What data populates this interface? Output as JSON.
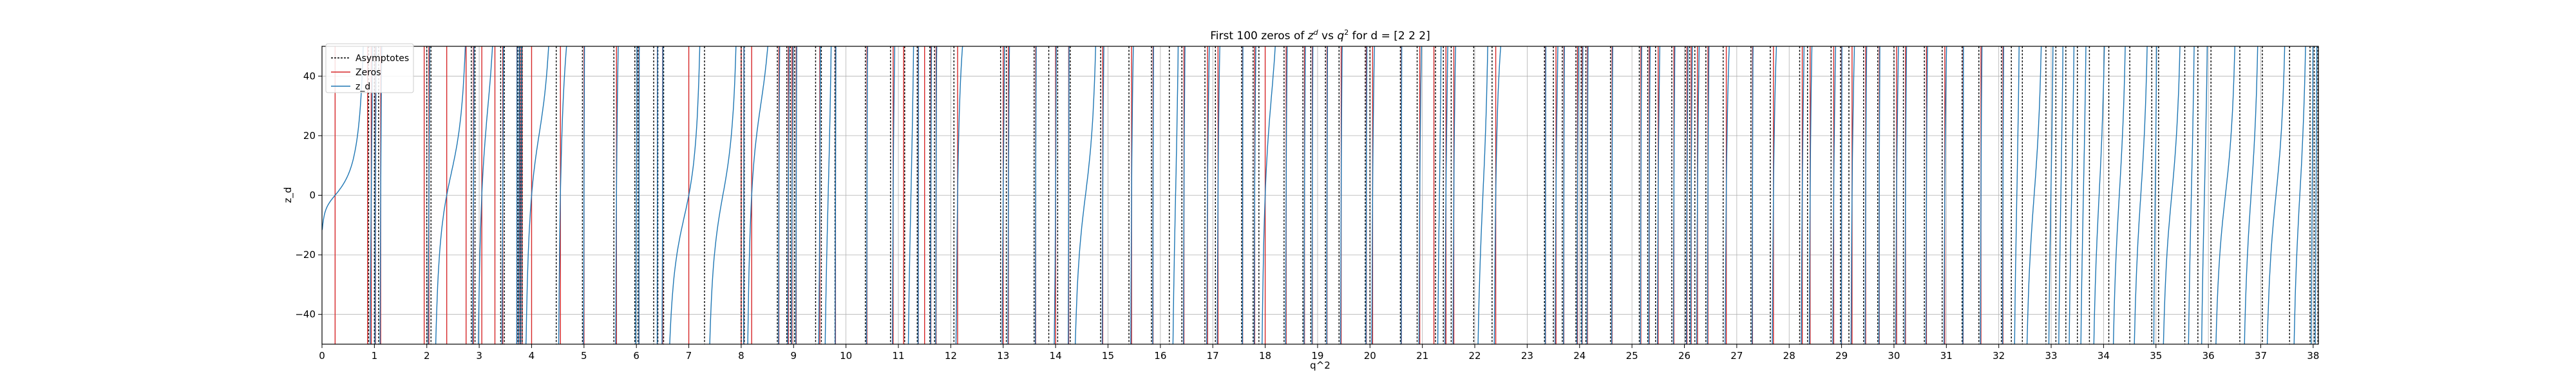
{
  "chart_data": {
    "type": "line",
    "title": "First 100 zeros of z^d vs q^2 for d = [2 2 2]",
    "title_parts": {
      "prefix": "First 100 zeros of ",
      "z": "z",
      "z_sup": "d",
      "vs": " vs ",
      "q": "q",
      "q_sup": "2",
      "suffix": " for d = [2 2 2]"
    },
    "xlabel": "q^2",
    "ylabel": "z_d",
    "xlim": [
      0,
      38.1
    ],
    "ylim": [
      -50,
      50
    ],
    "xticks": [
      "0",
      "1",
      "2",
      "3",
      "4",
      "5",
      "6",
      "7",
      "8",
      "9",
      "10",
      "11",
      "12",
      "13",
      "14",
      "15",
      "16",
      "17",
      "18",
      "19",
      "20",
      "21",
      "22",
      "23",
      "24",
      "25",
      "26",
      "27",
      "28",
      "29",
      "30",
      "31",
      "32",
      "33",
      "34",
      "35",
      "36",
      "37",
      "38"
    ],
    "yticks": [
      "−40",
      "−20",
      "0",
      "20",
      "40"
    ],
    "ytick_values": [
      -40,
      -20,
      0,
      20,
      40
    ],
    "grid": true,
    "legend": {
      "placement": "top-left",
      "entries": [
        {
          "label": "Asymptotes",
          "style": "dotted",
          "color": "#000000"
        },
        {
          "label": "Zeros",
          "style": "solid",
          "color": "#d62728"
        },
        {
          "label": "z_d",
          "style": "solid",
          "color": "#1f77b4"
        }
      ]
    },
    "colors": {
      "zeros": "#d62728",
      "asymptotes": "#000000",
      "curve": "#1f77b4"
    },
    "asymptotes": [
      0.89,
      1.0,
      1.08,
      2.0,
      2.08,
      2.85,
      2.92,
      3.41,
      3.48,
      3.74,
      3.78,
      3.82,
      4.47,
      4.97,
      5.57,
      5.97,
      6.03,
      6.33,
      6.41,
      6.52,
      7.3,
      8.0,
      8.06,
      8.69,
      8.87,
      8.94,
      9.02,
      9.42,
      9.53,
      9.79,
      10.37,
      10.85,
      11.12,
      11.36,
      11.6,
      11.69,
      12.06,
      12.95,
      13.06,
      13.59,
      13.87,
      14.04,
      14.28,
      14.86,
      15.4,
      15.83,
      16.17,
      16.41,
      16.85,
      17.05,
      17.55,
      17.77,
      17.88,
      18.36,
      18.72,
      18.87,
      19.15,
      19.41,
      19.91,
      20.0,
      20.58,
      20.9,
      21.25,
      21.4,
      21.55,
      21.98,
      22.33,
      23.33,
      23.5,
      23.67,
      23.93,
      24.03,
      24.12,
      24.59,
      25.14,
      25.3,
      25.45,
      25.76,
      26.02,
      26.1,
      26.2,
      26.41,
      26.74,
      27.27,
      27.64,
      28.2,
      28.35,
      28.8,
      28.98,
      29.14,
      29.42,
      29.69,
      30.0,
      30.18,
      30.58,
      30.92,
      31.3,
      31.62,
      32.05,
      32.24,
      32.45,
      32.9,
      33.09,
      33.28,
      33.5,
      33.73,
      34.1,
      34.5,
      34.92,
      35.05,
      35.55,
      35.8,
      36.05,
      36.6,
      37.03,
      37.55,
      37.94,
      38.02,
      38.09
    ],
    "zeros": [
      0.25,
      0.87,
      0.94,
      1.02,
      1.12,
      1.95,
      2.04,
      2.38,
      2.75,
      2.89,
      3.05,
      3.3,
      3.45,
      3.72,
      3.78,
      3.82,
      4.0,
      4.55,
      5.0,
      5.62,
      6.05,
      6.4,
      6.5,
      7.0,
      8.0,
      8.05,
      8.2,
      8.72,
      8.9,
      8.97,
      9.05,
      9.5,
      9.8,
      10.4,
      10.9,
      11.1,
      11.38,
      11.5,
      11.62,
      11.72,
      12.13,
      13.0,
      13.1,
      13.62,
      14.0,
      14.25,
      14.9,
      15.45,
      15.86,
      16.45,
      16.9,
      17.1,
      17.57,
      17.8,
      18.0,
      18.4,
      18.75,
      18.9,
      19.18,
      19.45,
      19.93,
      20.05,
      20.6,
      20.95,
      21.22,
      21.45,
      21.6,
      22.4,
      23.35,
      23.55,
      23.7,
      23.96,
      24.05,
      24.15,
      24.62,
      25.17,
      25.33,
      25.5,
      25.8,
      26.05,
      26.13,
      26.25,
      26.45,
      26.8,
      27.3,
      27.7,
      28.25,
      28.4,
      28.85,
      29.0,
      29.2,
      29.46,
      29.72,
      30.05,
      30.22,
      30.62,
      30.97,
      31.32,
      31.66,
      32.08
    ]
  }
}
